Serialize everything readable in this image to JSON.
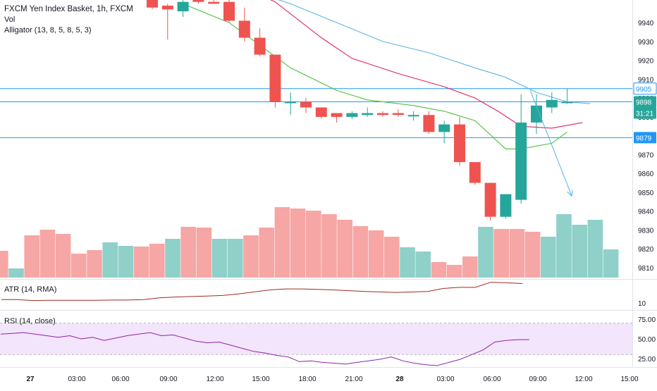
{
  "header": {
    "symbol_title": "FXCM Yen Index Basket, 1h, FXCM",
    "vol_label": "Vol",
    "alligator_label": "Alligator (13, 8, 5, 8, 5, 3)"
  },
  "atr": {
    "label": "ATR (14, RMA)",
    "tick": "10"
  },
  "rsi": {
    "label": "RSI (14, close)",
    "ticks": [
      "75.00",
      "50.00",
      "25.00"
    ]
  },
  "colors": {
    "up": "#26a69a",
    "down": "#ef5350",
    "vol_up": "#8fd0c9",
    "vol_down": "#f6a6a5",
    "jaw": "#5ab4e6",
    "teeth": "#e0245e",
    "lips": "#4cc23a",
    "hline": "#2196f3",
    "atr": "#9b2b1f",
    "rsi": "#8e24aa",
    "rsi_band": "#f3e5fb",
    "arrow": "#4db6e8"
  },
  "chart_data": [
    {
      "type": "candlestick",
      "title": "FXCM Yen Index Basket, 1h, FXCM",
      "y_range": [
        9804,
        9952
      ],
      "y_ticks": [
        9810,
        9820,
        9830,
        9840,
        9850,
        9860,
        9870,
        9880,
        9890,
        9900,
        9910,
        9920,
        9930,
        9940
      ],
      "x_tick_labels": [
        "27",
        "03:00",
        "06:00",
        "09:00",
        "12:00",
        "15:00",
        "18:00",
        "21:00",
        "28",
        "03:00",
        "06:00",
        "09:00",
        "12:00",
        "15:00"
      ],
      "candles": [
        {
          "o": 9952,
          "h": 9952,
          "l": 9947,
          "c": 9948
        },
        {
          "o": 9949,
          "h": 9950,
          "l": 9931,
          "c": 9947
        },
        {
          "o": 9946,
          "h": 9952,
          "l": 9943,
          "c": 9951
        },
        {
          "o": 9952,
          "h": 9952,
          "l": 9950,
          "c": 9951
        },
        {
          "o": 9951,
          "h": 9952,
          "l": 9950,
          "c": 9950
        },
        {
          "o": 9951,
          "h": 9952,
          "l": 9940,
          "c": 9941
        },
        {
          "o": 9941,
          "h": 9948,
          "l": 9930,
          "c": 9932
        },
        {
          "o": 9932,
          "h": 9937,
          "l": 9922,
          "c": 9923
        },
        {
          "o": 9923,
          "h": 9923,
          "l": 9895,
          "c": 9898
        },
        {
          "o": 9898,
          "h": 9903,
          "l": 9891,
          "c": 9898
        },
        {
          "o": 9898,
          "h": 9900,
          "l": 9892,
          "c": 9895
        },
        {
          "o": 9895,
          "h": 9895,
          "l": 9889,
          "c": 9890
        },
        {
          "o": 9892,
          "h": 9892,
          "l": 9887,
          "c": 9890
        },
        {
          "o": 9890,
          "h": 9893,
          "l": 9889,
          "c": 9892
        },
        {
          "o": 9891,
          "h": 9895,
          "l": 9890,
          "c": 9892
        },
        {
          "o": 9892,
          "h": 9893,
          "l": 9890,
          "c": 9891
        },
        {
          "o": 9892,
          "h": 9894,
          "l": 9890,
          "c": 9891
        },
        {
          "o": 9891,
          "h": 9893,
          "l": 9888,
          "c": 9891
        },
        {
          "o": 9891,
          "h": 9893,
          "l": 9881,
          "c": 9882
        },
        {
          "o": 9882,
          "h": 9888,
          "l": 9876,
          "c": 9886
        },
        {
          "o": 9886,
          "h": 9890,
          "l": 9864,
          "c": 9866
        },
        {
          "o": 9866,
          "h": 9866,
          "l": 9854,
          "c": 9855
        },
        {
          "o": 9855,
          "h": 9855,
          "l": 9835,
          "c": 9837
        },
        {
          "o": 9837,
          "h": 9849,
          "l": 9836,
          "c": 9849
        },
        {
          "o": 9846,
          "h": 9902,
          "l": 9844,
          "c": 9887
        },
        {
          "o": 9887,
          "h": 9902,
          "l": 9881,
          "c": 9896
        },
        {
          "o": 9895,
          "h": 9903,
          "l": 9892,
          "c": 9899
        },
        {
          "o": 9898,
          "h": 9905,
          "l": 9897,
          "c": 9898
        }
      ],
      "volume": [
        {
          "v": 0.38,
          "up": false
        },
        {
          "v": 0.13,
          "up": true
        },
        {
          "v": 0.6,
          "up": false
        },
        {
          "v": 0.68,
          "up": false
        },
        {
          "v": 0.62,
          "up": false
        },
        {
          "v": 0.34,
          "up": false
        },
        {
          "v": 0.39,
          "up": false
        },
        {
          "v": 0.5,
          "up": true
        },
        {
          "v": 0.45,
          "up": true
        },
        {
          "v": 0.44,
          "up": false
        },
        {
          "v": 0.48,
          "up": false
        },
        {
          "v": 0.55,
          "up": true
        },
        {
          "v": 0.72,
          "up": false
        },
        {
          "v": 0.71,
          "up": false
        },
        {
          "v": 0.55,
          "up": true
        },
        {
          "v": 0.55,
          "up": true
        },
        {
          "v": 0.6,
          "up": false
        },
        {
          "v": 0.71,
          "up": false
        },
        {
          "v": 1.0,
          "up": false
        },
        {
          "v": 0.98,
          "up": false
        },
        {
          "v": 0.95,
          "up": false
        },
        {
          "v": 0.9,
          "up": false
        },
        {
          "v": 0.82,
          "up": false
        },
        {
          "v": 0.73,
          "up": false
        },
        {
          "v": 0.67,
          "up": false
        },
        {
          "v": 0.58,
          "up": false
        },
        {
          "v": 0.43,
          "up": true
        },
        {
          "v": 0.37,
          "up": true
        },
        {
          "v": 0.22,
          "up": false
        },
        {
          "v": 0.18,
          "up": false
        },
        {
          "v": 0.3,
          "up": false
        },
        {
          "v": 0.72,
          "up": true
        },
        {
          "v": 0.69,
          "up": false
        },
        {
          "v": 0.69,
          "up": false
        },
        {
          "v": 0.65,
          "up": false
        },
        {
          "v": 0.58,
          "up": true
        },
        {
          "v": 0.9,
          "up": true
        },
        {
          "v": 0.75,
          "up": true
        },
        {
          "v": 0.82,
          "up": true
        },
        {
          "v": 0.4,
          "up": true
        }
      ],
      "horizontal_lines": [
        9905,
        9898,
        9879
      ],
      "price_labels": [
        {
          "text": "9905",
          "value": 9905,
          "style": "outline"
        },
        {
          "text": "9898",
          "value": 9898,
          "style": "teal"
        },
        {
          "text": "31:21",
          "value": 9892,
          "style": "teal"
        },
        {
          "text": "9879",
          "value": 9879,
          "style": "blue"
        }
      ],
      "alligator": {
        "jaw": [
          [
            0,
            9970
          ],
          [
            6,
            9958
          ],
          [
            9,
            9950
          ],
          [
            12,
            9940
          ],
          [
            15,
            9930
          ],
          [
            18,
            9924
          ],
          [
            21,
            9916
          ],
          [
            23,
            9911
          ],
          [
            25,
            9903
          ],
          [
            27,
            9898
          ],
          [
            28.5,
            9897
          ]
        ],
        "teeth": [
          [
            0,
            9980
          ],
          [
            8,
            9951
          ],
          [
            11,
            9932
          ],
          [
            13,
            9921
          ],
          [
            16,
            9913
          ],
          [
            19,
            9906
          ],
          [
            21,
            9900
          ],
          [
            22.5,
            9893
          ],
          [
            24,
            9885
          ],
          [
            26,
            9884
          ],
          [
            28,
            9887
          ]
        ],
        "lips": [
          [
            2,
            9950
          ],
          [
            5,
            9940
          ],
          [
            7,
            9928
          ],
          [
            9,
            9916
          ],
          [
            12,
            9904
          ],
          [
            14,
            9899
          ],
          [
            17,
            9896
          ],
          [
            19,
            9893
          ],
          [
            21,
            9888
          ],
          [
            23,
            9873
          ],
          [
            24,
            9873
          ],
          [
            26,
            9876
          ],
          [
            27,
            9882
          ]
        ]
      },
      "projection_arrow": {
        "from": [
          24.6,
          9904
        ],
        "to": [
          27.3,
          9848
        ]
      }
    },
    {
      "type": "line",
      "title": "ATR (14, RMA)",
      "y_ticks": [
        "10"
      ],
      "values": [
        0.3,
        0.3,
        0.26,
        0.27,
        0.27,
        0.27,
        0.27,
        0.28,
        0.28,
        0.3,
        0.37,
        0.4,
        0.42,
        0.44,
        0.46,
        0.52,
        0.6,
        0.68,
        0.72,
        0.72,
        0.7,
        0.68,
        0.65,
        0.62,
        0.6,
        0.58,
        0.6,
        0.62,
        0.74,
        0.78,
        0.78,
        0.98,
        0.96,
        0.93
      ]
    },
    {
      "type": "line",
      "title": "RSI (14, close)",
      "y_range": [
        15,
        85
      ],
      "y_ticks": [
        75,
        50,
        25
      ],
      "band": [
        30,
        70
      ],
      "values": [
        56,
        57,
        58,
        56,
        54,
        52,
        54,
        50,
        52,
        48,
        51,
        54,
        56,
        58,
        54,
        55,
        51,
        47,
        45,
        46,
        42,
        38,
        34,
        32,
        29,
        27,
        21,
        22,
        20,
        19,
        18,
        20,
        22,
        24,
        27,
        22,
        19,
        17,
        16,
        20,
        24,
        30,
        36,
        46,
        48,
        49,
        49
      ]
    }
  ]
}
